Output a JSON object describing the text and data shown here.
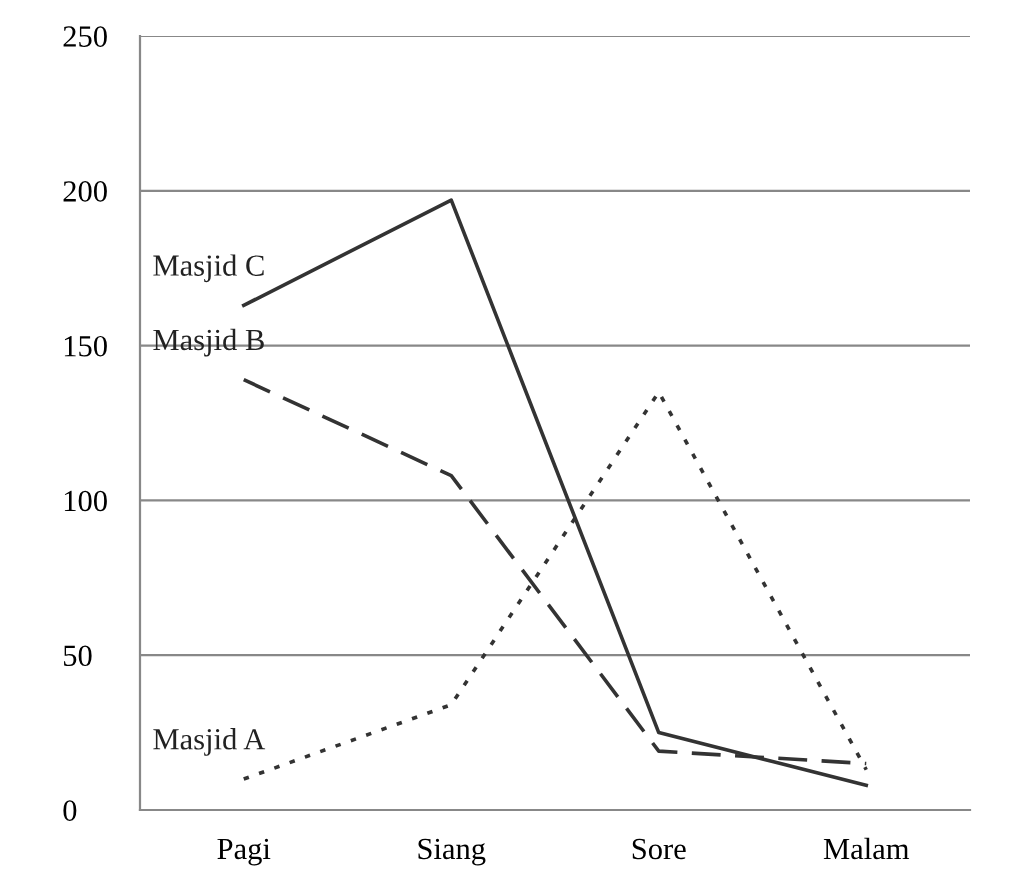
{
  "chart_data": {
    "type": "line",
    "categories": [
      "Pagi",
      "Siang",
      "Sore",
      "Malam"
    ],
    "series": [
      {
        "name": "Masjid A",
        "color": "#333333",
        "line_style": "dotted",
        "values": [
          10,
          34,
          135,
          13
        ]
      },
      {
        "name": "Masjid B",
        "color": "#333333",
        "line_style": "dashed",
        "values": [
          139,
          108,
          19,
          15
        ]
      },
      {
        "name": "Masjid C",
        "color": "#333333",
        "line_style": "solid",
        "values": [
          163,
          197,
          25,
          8
        ]
      }
    ],
    "ylim": [
      0,
      250
    ],
    "yticks": [
      0,
      50,
      100,
      150,
      200,
      250
    ],
    "grid": "y",
    "legend": false,
    "marker": "none"
  }
}
